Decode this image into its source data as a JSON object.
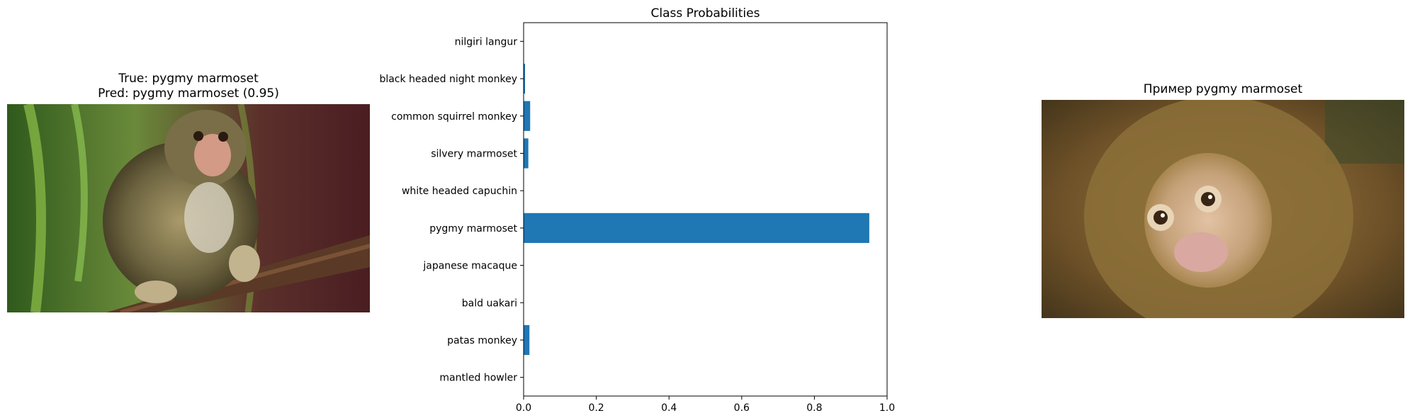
{
  "left_panel": {
    "title_line1": "True: pygmy marmoset",
    "title_line2": "Pred: pygmy marmoset (0.95)",
    "image_subject": "pygmy marmoset on branch"
  },
  "right_panel": {
    "title": "Пример pygmy marmoset",
    "image_subject": "pygmy marmoset face close-up"
  },
  "chart_data": {
    "type": "bar",
    "orientation": "horizontal",
    "title": "Class Probabilities",
    "categories": [
      "mantled howler",
      "patas monkey",
      "bald uakari",
      "japanese macaque",
      "pygmy marmoset",
      "white headed capuchin",
      "silvery marmoset",
      "common squirrel monkey",
      "black headed night monkey",
      "nilgiri langur"
    ],
    "values": [
      0.0,
      0.016,
      0.0,
      0.0,
      0.951,
      0.0,
      0.013,
      0.018,
      0.004,
      0.0
    ],
    "xlim": [
      0.0,
      1.0
    ],
    "xticks": [
      "0.0",
      "0.2",
      "0.4",
      "0.6",
      "0.8",
      "1.0"
    ],
    "bar_color": "#1f77b4",
    "grid": false
  }
}
